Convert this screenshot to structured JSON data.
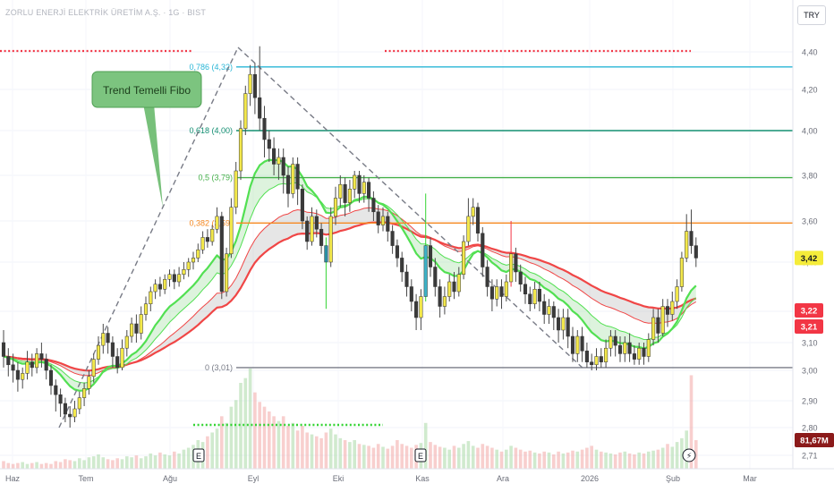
{
  "header": {
    "symbol_title": "ZORLU ENERJİ ELEKTRİK ÜRETİM A.Ş. · 1G · BIST",
    "currency": "TRY"
  },
  "colors": {
    "up": "#f3e84b",
    "down": "#3a3a3a",
    "fib_0786": "#29b6d6",
    "fib_0618": "#138f71",
    "fib_05": "#45b04a",
    "fib_0382": "#f5871f",
    "fib_0": "#787b86",
    "ema_fast": "#52e052",
    "ema_slow": "#f04646"
  },
  "annotation": {
    "label": "Trend Temelli Fibo"
  },
  "markers": {
    "earnings": "E",
    "dividend": "⚡"
  },
  "chart_data": {
    "type": "candlestick",
    "yticks": [
      "4,40",
      "4,20",
      "4,00",
      "3,80",
      "3,60",
      "3,40",
      "3,20",
      "3,10",
      "3,00",
      "2,90",
      "2,80",
      "2,71"
    ],
    "xticks": [
      "Haz",
      "Tem",
      "Ağu",
      "Eyl",
      "Eki",
      "Kas",
      "Ara",
      "2026",
      "Şub",
      "Mar"
    ],
    "ylim": [
      2.71,
      4.46
    ],
    "fib_levels": [
      {
        "ratio": "0,786",
        "price": 4.32,
        "label": "0,786 (4,32)"
      },
      {
        "ratio": "0,618",
        "price": 4.0,
        "label": "0,618 (4,00)"
      },
      {
        "ratio": "0,5",
        "price": 3.79,
        "label": "0,5 (3,79)"
      },
      {
        "ratio": "0,382",
        "price": 3.59,
        "label": "0,382 (3,59)"
      },
      {
        "ratio": "0",
        "price": 3.01,
        "label": "0 (3,01)"
      }
    ],
    "price_labels": {
      "last": "3,42",
      "ema_a": "3,22",
      "ema_b": "3,21",
      "volume": "81,67M"
    },
    "last_price": 3.42,
    "ema_a": 3.22,
    "ema_b": 3.21,
    "candles": [
      [
        3.1,
        3.05,
        3.14,
        3.01
      ],
      [
        3.05,
        3.02,
        3.08,
        2.98
      ],
      [
        3.02,
        3.0,
        3.06,
        2.96
      ],
      [
        3.0,
        2.97,
        3.03,
        2.93
      ],
      [
        2.97,
        2.99,
        3.01,
        2.94
      ],
      [
        2.99,
        3.03,
        3.07,
        2.97
      ],
      [
        3.03,
        3.01,
        3.06,
        2.98
      ],
      [
        3.01,
        3.06,
        3.08,
        2.99
      ],
      [
        3.06,
        3.04,
        3.1,
        3.01
      ],
      [
        3.04,
        3.0,
        3.06,
        2.97
      ],
      [
        3.0,
        2.95,
        3.02,
        2.92
      ],
      [
        2.95,
        2.92,
        2.97,
        2.86
      ],
      [
        2.92,
        2.89,
        2.94,
        2.84
      ],
      [
        2.89,
        2.85,
        2.91,
        2.82
      ],
      [
        2.85,
        2.84,
        2.88,
        2.8
      ],
      [
        2.84,
        2.87,
        2.9,
        2.82
      ],
      [
        2.87,
        2.91,
        2.93,
        2.85
      ],
      [
        2.91,
        2.94,
        2.96,
        2.88
      ],
      [
        2.94,
        2.98,
        3.0,
        2.92
      ],
      [
        2.98,
        3.04,
        3.06,
        2.96
      ],
      [
        3.04,
        3.09,
        3.12,
        3.02
      ],
      [
        3.09,
        3.13,
        3.16,
        3.06
      ],
      [
        3.13,
        3.1,
        3.15,
        3.06
      ],
      [
        3.1,
        3.05,
        3.12,
        3.01
      ],
      [
        3.05,
        3.01,
        3.08,
        2.99
      ],
      [
        3.01,
        3.08,
        3.11,
        3.0
      ],
      [
        3.08,
        3.12,
        3.14,
        3.05
      ],
      [
        3.12,
        3.16,
        3.18,
        3.1
      ],
      [
        3.16,
        3.13,
        3.19,
        3.1
      ],
      [
        3.13,
        3.19,
        3.22,
        3.11
      ],
      [
        3.19,
        3.23,
        3.26,
        3.17
      ],
      [
        3.23,
        3.28,
        3.3,
        3.2
      ],
      [
        3.28,
        3.31,
        3.33,
        3.25
      ],
      [
        3.31,
        3.29,
        3.34,
        3.26
      ],
      [
        3.29,
        3.33,
        3.35,
        3.27
      ],
      [
        3.33,
        3.35,
        3.37,
        3.3
      ],
      [
        3.35,
        3.32,
        3.37,
        3.29
      ],
      [
        3.32,
        3.35,
        3.38,
        3.3
      ],
      [
        3.35,
        3.37,
        3.4,
        3.33
      ],
      [
        3.37,
        3.4,
        3.42,
        3.34
      ],
      [
        3.4,
        3.42,
        3.45,
        3.37
      ],
      [
        3.42,
        3.46,
        3.49,
        3.4
      ],
      [
        3.46,
        3.52,
        3.55,
        3.44
      ],
      [
        3.52,
        3.5,
        3.56,
        3.47
      ],
      [
        3.5,
        3.56,
        3.58,
        3.48
      ],
      [
        3.56,
        3.62,
        3.66,
        3.54
      ],
      [
        3.62,
        3.28,
        3.64,
        3.25
      ],
      [
        3.28,
        3.44,
        3.47,
        3.26
      ],
      [
        3.44,
        3.66,
        3.7,
        3.42
      ],
      [
        3.66,
        3.82,
        3.86,
        3.63
      ],
      [
        3.82,
        4.01,
        4.05,
        3.78
      ],
      [
        4.01,
        4.18,
        4.22,
        3.98
      ],
      [
        4.18,
        4.28,
        4.33,
        4.12
      ],
      [
        4.28,
        4.16,
        4.34,
        4.08
      ],
      [
        4.16,
        4.06,
        4.43,
        4.0
      ],
      [
        4.06,
        3.96,
        4.12,
        3.88
      ],
      [
        3.96,
        3.92,
        4.0,
        3.86
      ],
      [
        3.92,
        3.85,
        3.97,
        3.8
      ],
      [
        3.85,
        3.88,
        3.92,
        3.78
      ],
      [
        3.88,
        3.8,
        3.92,
        3.72
      ],
      [
        3.8,
        3.72,
        3.84,
        3.66
      ],
      [
        3.72,
        3.85,
        3.88,
        3.7
      ],
      [
        3.85,
        3.74,
        3.88,
        3.67
      ],
      [
        3.74,
        3.6,
        3.76,
        3.56
      ],
      [
        3.6,
        3.5,
        3.62,
        3.46
      ],
      [
        3.5,
        3.62,
        3.66,
        3.48
      ],
      [
        3.62,
        3.56,
        3.65,
        3.52
      ],
      [
        3.56,
        3.48,
        3.59,
        3.44
      ],
      [
        3.48,
        3.4,
        3.52,
        3.21
      ],
      [
        3.4,
        3.62,
        3.66,
        3.38
      ],
      [
        3.62,
        3.7,
        3.75,
        3.58
      ],
      [
        3.7,
        3.76,
        3.8,
        3.66
      ],
      [
        3.76,
        3.68,
        3.79,
        3.62
      ],
      [
        3.68,
        3.74,
        3.78,
        3.64
      ],
      [
        3.74,
        3.8,
        3.82,
        3.7
      ],
      [
        3.8,
        3.72,
        3.82,
        3.68
      ],
      [
        3.72,
        3.77,
        3.8,
        3.68
      ],
      [
        3.77,
        3.7,
        3.79,
        3.64
      ],
      [
        3.7,
        3.64,
        3.73,
        3.6
      ],
      [
        3.64,
        3.58,
        3.67,
        3.54
      ],
      [
        3.58,
        3.62,
        3.66,
        3.55
      ],
      [
        3.62,
        3.55,
        3.64,
        3.5
      ],
      [
        3.55,
        3.48,
        3.58,
        3.44
      ],
      [
        3.48,
        3.42,
        3.51,
        3.38
      ],
      [
        3.42,
        3.36,
        3.45,
        3.32
      ],
      [
        3.36,
        3.3,
        3.39,
        3.26
      ],
      [
        3.3,
        3.24,
        3.33,
        3.2
      ],
      [
        3.24,
        3.18,
        3.27,
        3.14
      ],
      [
        3.18,
        3.26,
        3.29,
        3.14
      ],
      [
        3.26,
        3.48,
        3.72,
        3.24
      ],
      [
        3.48,
        3.38,
        3.52,
        3.34
      ],
      [
        3.38,
        3.3,
        3.42,
        3.26
      ],
      [
        3.3,
        3.22,
        3.33,
        3.18
      ],
      [
        3.22,
        3.26,
        3.3,
        3.19
      ],
      [
        3.26,
        3.32,
        3.35,
        3.24
      ],
      [
        3.32,
        3.28,
        3.36,
        3.25
      ],
      [
        3.28,
        3.35,
        3.38,
        3.26
      ],
      [
        3.35,
        3.5,
        3.53,
        3.33
      ],
      [
        3.5,
        3.62,
        3.7,
        3.48
      ],
      [
        3.62,
        3.66,
        3.7,
        3.58
      ],
      [
        3.66,
        3.54,
        3.68,
        3.5
      ],
      [
        3.54,
        3.38,
        3.57,
        3.34
      ],
      [
        3.38,
        3.3,
        3.41,
        3.26
      ],
      [
        3.3,
        3.25,
        3.33,
        3.2
      ],
      [
        3.25,
        3.3,
        3.33,
        3.22
      ],
      [
        3.3,
        3.26,
        3.33,
        3.21
      ],
      [
        3.26,
        3.32,
        3.35,
        3.24
      ],
      [
        3.32,
        3.44,
        3.6,
        3.3
      ],
      [
        3.44,
        3.36,
        3.47,
        3.32
      ],
      [
        3.36,
        3.31,
        3.39,
        3.28
      ],
      [
        3.31,
        3.27,
        3.34,
        3.23
      ],
      [
        3.27,
        3.23,
        3.3,
        3.2
      ],
      [
        3.23,
        3.29,
        3.32,
        3.21
      ],
      [
        3.29,
        3.24,
        3.32,
        3.2
      ],
      [
        3.24,
        3.19,
        3.27,
        3.16
      ],
      [
        3.19,
        3.22,
        3.25,
        3.16
      ],
      [
        3.22,
        3.18,
        3.24,
        3.14
      ],
      [
        3.18,
        3.14,
        3.21,
        3.1
      ],
      [
        3.14,
        3.18,
        3.21,
        3.11
      ],
      [
        3.18,
        3.12,
        3.21,
        3.08
      ],
      [
        3.12,
        3.06,
        3.15,
        3.03
      ],
      [
        3.06,
        3.12,
        3.14,
        3.03
      ],
      [
        3.12,
        3.07,
        3.15,
        3.03
      ],
      [
        3.07,
        3.03,
        3.1,
        3.01
      ],
      [
        3.03,
        3.02,
        3.06,
        3.0
      ],
      [
        3.02,
        3.05,
        3.08,
        3.0
      ],
      [
        3.05,
        3.03,
        3.08,
        3.01
      ],
      [
        3.03,
        3.08,
        3.11,
        3.01
      ],
      [
        3.08,
        3.12,
        3.14,
        3.05
      ],
      [
        3.12,
        3.09,
        3.14,
        3.05
      ],
      [
        3.09,
        3.06,
        3.12,
        3.03
      ],
      [
        3.06,
        3.1,
        3.12,
        3.03
      ],
      [
        3.1,
        3.06,
        3.13,
        3.03
      ],
      [
        3.06,
        3.04,
        3.09,
        3.02
      ],
      [
        3.04,
        3.08,
        3.1,
        3.02
      ],
      [
        3.08,
        3.05,
        3.1,
        3.02
      ],
      [
        3.05,
        3.11,
        3.13,
        3.03
      ],
      [
        3.11,
        3.18,
        3.21,
        3.09
      ],
      [
        3.18,
        3.13,
        3.21,
        3.1
      ],
      [
        3.13,
        3.22,
        3.25,
        3.12
      ],
      [
        3.22,
        3.19,
        3.25,
        3.15
      ],
      [
        3.19,
        3.24,
        3.28,
        3.17
      ],
      [
        3.24,
        3.3,
        3.33,
        3.21
      ],
      [
        3.3,
        3.42,
        3.45,
        3.28
      ],
      [
        3.42,
        3.55,
        3.63,
        3.4
      ],
      [
        3.55,
        3.48,
        3.65,
        3.44
      ],
      [
        3.48,
        3.42,
        3.52,
        3.38
      ]
    ],
    "volumes": [
      0.8,
      0.6,
      0.5,
      0.6,
      0.7,
      0.5,
      0.6,
      0.7,
      0.5,
      0.6,
      0.5,
      0.8,
      0.7,
      1.0,
      0.9,
      0.8,
      1.1,
      0.9,
      1.2,
      1.3,
      1.5,
      1.2,
      1.0,
      0.9,
      1.1,
      1.0,
      1.3,
      1.2,
      1.4,
      1.1,
      1.3,
      1.6,
      1.4,
      1.7,
      1.5,
      1.4,
      1.8,
      1.6,
      2.0,
      2.2,
      2.5,
      3.0,
      2.8,
      3.4,
      3.8,
      4.2,
      5.5,
      4.8,
      6.5,
      7.2,
      9.0,
      9.5,
      10.5,
      8.0,
      7.0,
      6.5,
      6.0,
      5.5,
      5.0,
      5.5,
      4.5,
      4.8,
      4.0,
      4.5,
      3.8,
      3.6,
      3.4,
      3.2,
      3.8,
      4.2,
      3.6,
      3.2,
      3.0,
      2.8,
      3.0,
      2.6,
      2.5,
      2.4,
      2.2,
      2.6,
      2.3,
      2.1,
      2.4,
      3.0,
      2.6,
      2.4,
      2.2,
      2.5,
      2.7,
      4.8,
      2.8,
      2.5,
      2.3,
      2.2,
      2.0,
      2.4,
      2.2,
      2.6,
      2.9,
      2.4,
      2.2,
      2.6,
      2.4,
      2.2,
      2.0,
      1.8,
      2.0,
      2.4,
      2.2,
      2.0,
      1.8,
      1.9,
      1.7,
      1.6,
      1.8,
      1.7,
      1.5,
      1.8,
      1.6,
      1.7,
      1.9,
      1.8,
      2.0,
      2.2,
      2.4,
      2.0,
      1.8,
      1.7,
      1.6,
      1.5,
      1.7,
      1.8,
      1.6,
      1.5,
      1.7,
      1.6,
      1.8,
      1.9,
      2.0,
      2.2,
      2.6,
      2.3,
      2.8,
      3.2,
      4.0,
      9.8,
      3.0
    ]
  }
}
